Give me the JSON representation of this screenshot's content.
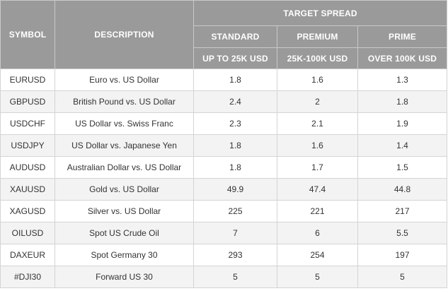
{
  "colors": {
    "header_bg": "#9a9a9a",
    "header_text": "#ffffff",
    "row_alt_bg": "#f3f3f3",
    "border": "#d4d4d4",
    "cell_text": "#333333"
  },
  "header": {
    "symbol": "SYMBOL",
    "description": "DESCRIPTION",
    "target_spread": "TARGET SPREAD",
    "standard": "STANDARD",
    "premium": "PREMIUM",
    "prime": "PRIME",
    "standard_range": "UP TO 25K USD",
    "premium_range": "25K-100K USD",
    "prime_range": "OVER 100K USD"
  },
  "rows": [
    {
      "symbol": "EURUSD",
      "description": "Euro vs. US Dollar",
      "standard": "1.8",
      "premium": "1.6",
      "prime": "1.3"
    },
    {
      "symbol": "GBPUSD",
      "description": "British Pound vs. US Dollar",
      "standard": "2.4",
      "premium": "2",
      "prime": "1.8"
    },
    {
      "symbol": "USDCHF",
      "description": "US Dollar vs. Swiss Franc",
      "standard": "2.3",
      "premium": "2.1",
      "prime": "1.9"
    },
    {
      "symbol": "USDJPY",
      "description": "US Dollar vs. Japanese Yen",
      "standard": "1.8",
      "premium": "1.6",
      "prime": "1.4"
    },
    {
      "symbol": "AUDUSD",
      "description": "Australian Dollar vs. US Dollar",
      "standard": "1.8",
      "premium": "1.7",
      "prime": "1.5"
    },
    {
      "symbol": "XAUUSD",
      "description": "Gold vs. US Dollar",
      "standard": "49.9",
      "premium": "47.4",
      "prime": "44.8"
    },
    {
      "symbol": "XAGUSD",
      "description": "Silver vs. US Dollar",
      "standard": "225",
      "premium": "221",
      "prime": "217"
    },
    {
      "symbol": "OILUSD",
      "description": "Spot US Crude Oil",
      "standard": "7",
      "premium": "6",
      "prime": "5.5"
    },
    {
      "symbol": "DAXEUR",
      "description": "Spot Germany 30",
      "standard": "293",
      "premium": "254",
      "prime": "197"
    },
    {
      "symbol": "#DJI30",
      "description": "Forward US 30",
      "standard": "5",
      "premium": "5",
      "prime": "5"
    }
  ]
}
